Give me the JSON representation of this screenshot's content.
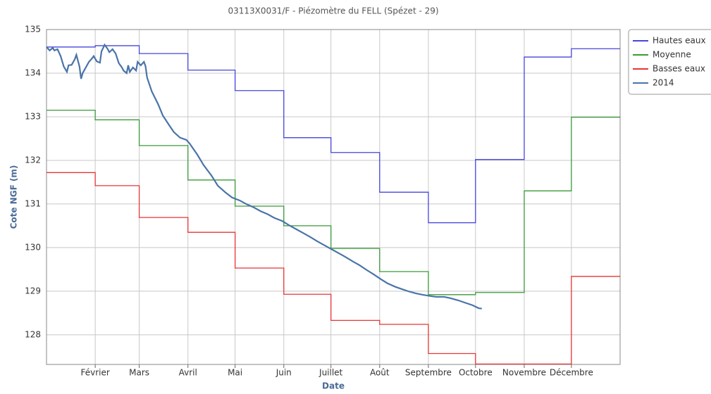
{
  "chart_data": {
    "type": "line",
    "title": "03113X0031/F - Piézomètre du FELL (Spézet - 29)",
    "y_label": "Cote NGF (m)",
    "x_label": "Date",
    "xlim": [
      0,
      365
    ],
    "xticks": [
      {
        "value": 31,
        "label": "Février"
      },
      {
        "value": 59,
        "label": "Mars"
      },
      {
        "value": 90,
        "label": "Avril"
      },
      {
        "value": 120,
        "label": "Mai"
      },
      {
        "value": 151,
        "label": "Juin"
      },
      {
        "value": 181,
        "label": "Juillet"
      },
      {
        "value": 212,
        "label": "Août"
      },
      {
        "value": 243,
        "label": "Septembre"
      },
      {
        "value": 273,
        "label": "Octobre"
      },
      {
        "value": 304,
        "label": "Novembre"
      },
      {
        "value": 334,
        "label": "Décembre"
      }
    ],
    "ylim": [
      127.32,
      135
    ],
    "yticks": [
      128,
      129,
      130,
      131,
      132,
      133,
      134,
      135
    ],
    "grid": true,
    "legend": "right",
    "series": [
      {
        "name": "Hautes eaux",
        "color": "#4646dc",
        "step": true,
        "x": [
          0,
          31,
          59,
          90,
          120,
          151,
          181,
          212,
          243,
          273,
          304,
          334
        ],
        "values": [
          134.6,
          134.63,
          134.45,
          134.07,
          133.6,
          132.52,
          132.18,
          131.27,
          130.57,
          132.02,
          134.37,
          134.56
        ]
      },
      {
        "name": "Moyenne",
        "color": "#3a9a3a",
        "step": true,
        "x": [
          0,
          31,
          59,
          90,
          120,
          151,
          181,
          212,
          243,
          273,
          304,
          334
        ],
        "values": [
          133.15,
          132.93,
          132.34,
          131.55,
          130.95,
          130.5,
          129.98,
          129.45,
          128.92,
          128.97,
          131.3,
          132.99
        ]
      },
      {
        "name": "Basses eaux",
        "color": "#e83535",
        "step": true,
        "x": [
          0,
          31,
          59,
          90,
          120,
          151,
          181,
          212,
          243,
          273,
          304,
          334
        ],
        "values": [
          131.72,
          131.42,
          130.69,
          130.35,
          129.53,
          128.93,
          128.33,
          128.24,
          127.57,
          127.33,
          127.33,
          129.34
        ]
      },
      {
        "name": "2014",
        "color": "#4a74a8",
        "step": false,
        "x": [
          0,
          2,
          4,
          5,
          7,
          9,
          11,
          13,
          14,
          16,
          18,
          19,
          21,
          22,
          23,
          25,
          27,
          29,
          30,
          32,
          34,
          35,
          37,
          39,
          40,
          42,
          44,
          46,
          48,
          49,
          51,
          52,
          53,
          55,
          57,
          58,
          60,
          62,
          63,
          64,
          67,
          71,
          74,
          78,
          81,
          85,
          89,
          91,
          96,
          100,
          105,
          109,
          114,
          118,
          123,
          127,
          132,
          136,
          141,
          145,
          150,
          154,
          159,
          163,
          168,
          172,
          177,
          181,
          186,
          190,
          195,
          199,
          204,
          208,
          213,
          217,
          222,
          226,
          230,
          235,
          239,
          244,
          248,
          253,
          257,
          262,
          266,
          271,
          275,
          277
        ],
        "values": [
          134.6,
          134.52,
          134.58,
          134.52,
          134.55,
          134.39,
          134.15,
          134.03,
          134.18,
          134.19,
          134.32,
          134.42,
          134.15,
          133.87,
          134.0,
          134.13,
          134.26,
          134.34,
          134.39,
          134.27,
          134.24,
          134.5,
          134.65,
          134.55,
          134.48,
          134.55,
          134.45,
          134.23,
          134.13,
          134.06,
          134.0,
          134.18,
          134.03,
          134.13,
          134.06,
          134.26,
          134.18,
          134.26,
          134.16,
          133.9,
          133.58,
          133.29,
          133.03,
          132.81,
          132.65,
          132.52,
          132.47,
          132.39,
          132.13,
          131.89,
          131.65,
          131.42,
          131.26,
          131.15,
          131.08,
          131.0,
          130.92,
          130.84,
          130.76,
          130.68,
          130.61,
          130.52,
          130.42,
          130.34,
          130.24,
          130.15,
          130.05,
          129.97,
          129.87,
          129.79,
          129.68,
          129.6,
          129.48,
          129.39,
          129.27,
          129.18,
          129.1,
          129.05,
          129.0,
          128.95,
          128.92,
          128.89,
          128.87,
          128.87,
          128.84,
          128.79,
          128.74,
          128.68,
          128.61,
          128.6
        ]
      }
    ]
  }
}
